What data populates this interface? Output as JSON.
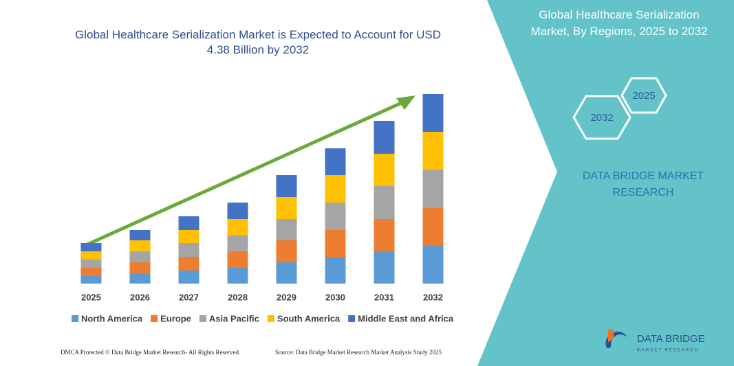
{
  "chart_data": {
    "type": "stacked_bar",
    "title": "Global Healthcare Serialization Market is Expected to Account for USD 4.38 Billion by 2032",
    "categories": [
      "2025",
      "2026",
      "2027",
      "2028",
      "2029",
      "2030",
      "2031",
      "2032"
    ],
    "series": [
      {
        "name": "North America",
        "color": "#5b9bd5",
        "values": [
          11,
          15,
          19,
          23,
          31,
          39,
          47,
          55
        ]
      },
      {
        "name": "Europe",
        "color": "#ed7d31",
        "values": [
          12,
          16,
          20,
          24,
          32,
          39,
          47,
          55
        ]
      },
      {
        "name": "Asia Pacific",
        "color": "#a5a5a5",
        "values": [
          12,
          16,
          20,
          23,
          31,
          40,
          48,
          56
        ]
      },
      {
        "name": "South America",
        "color": "#ffc000",
        "values": [
          12,
          16,
          19,
          24,
          32,
          40,
          47,
          55
        ]
      },
      {
        "name": "Middle East and Africa",
        "color": "#4472c4",
        "values": [
          12,
          15,
          20,
          24,
          32,
          39,
          48,
          55
        ]
      }
    ],
    "ylim": [
      0,
      276
    ],
    "grid": false,
    "legend": "bottom"
  },
  "panel": {
    "title": "Global Healthcare Serialization Market, By Regions, 2025 to 2032",
    "hexagons": [
      "2025",
      "2032"
    ],
    "brand": "DATA BRIDGE MARKET RESEARCH"
  },
  "logo": {
    "name": "DATA BRIDGE",
    "tagline": "MARKET RESEARCH"
  },
  "footer": {
    "left": "DMCA Protected © Data Bridge Market Research- All Rights Reserved.",
    "right": "Source: Data Bridge Market Research Market Analysis Study 2025"
  }
}
